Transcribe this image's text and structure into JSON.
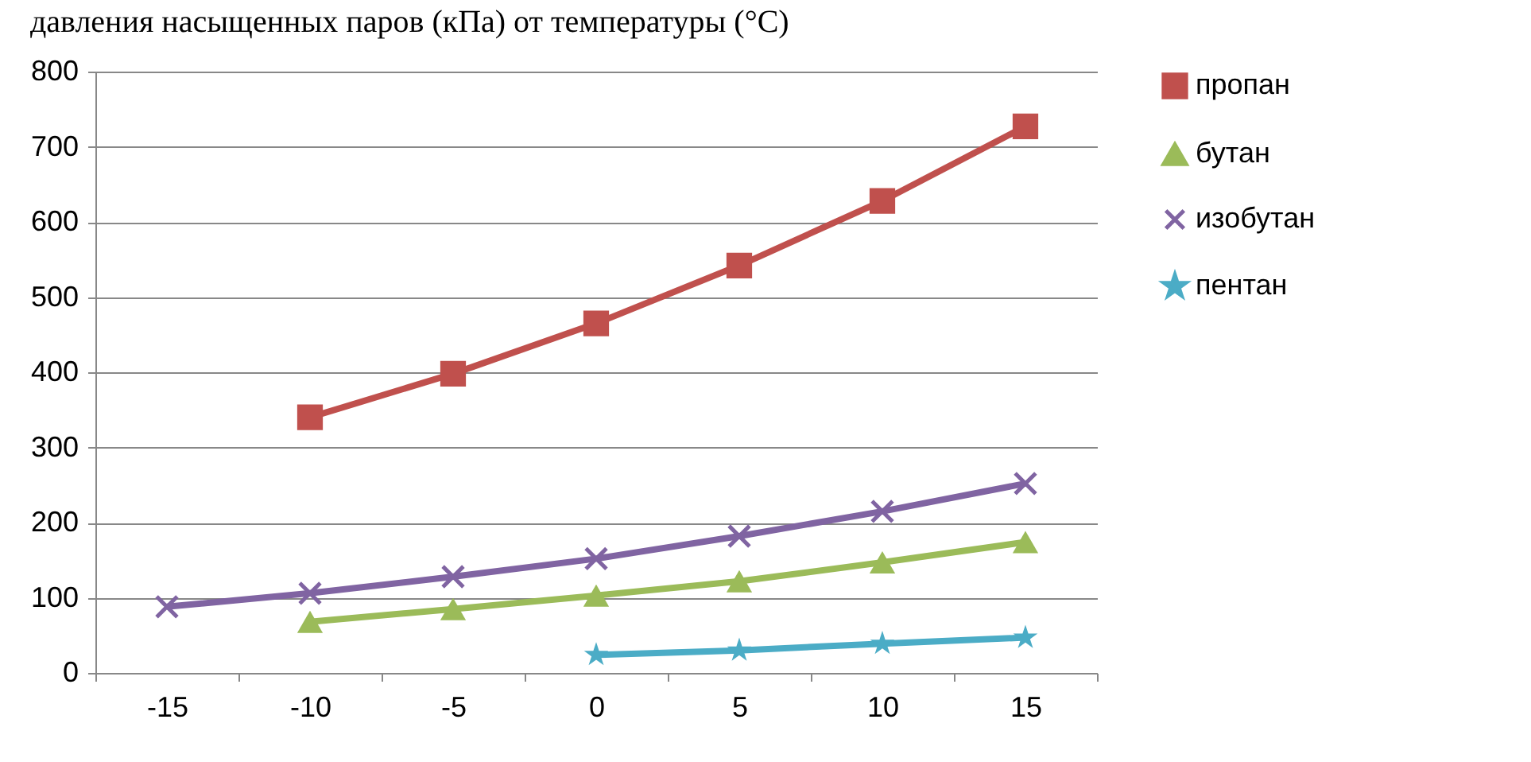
{
  "chart_data": {
    "type": "line",
    "title": "давления насыщенных паров (кПа) от температуры (°С)",
    "categories": [
      "-15",
      "-10",
      "-5",
      "0",
      "5",
      "10",
      "15"
    ],
    "series": [
      {
        "name": "пропан",
        "color": "#c0504d",
        "marker": "square",
        "values": [
          null,
          340,
          398,
          465,
          542,
          628,
          727
        ]
      },
      {
        "name": "бутан",
        "color": "#9bbb59",
        "marker": "triangle",
        "values": [
          null,
          68,
          85,
          103,
          122,
          147,
          174
        ]
      },
      {
        "name": "изобутан",
        "color": "#8064a2",
        "marker": "cross",
        "values": [
          88,
          106,
          128,
          152,
          182,
          215,
          252
        ]
      },
      {
        "name": "пентан",
        "color": "#4bacc6",
        "marker": "star",
        "values": [
          null,
          null,
          null,
          24,
          30,
          39,
          47
        ]
      }
    ],
    "ylim": [
      0,
      800
    ],
    "yticks": [
      0,
      100,
      200,
      300,
      400,
      500,
      600,
      700,
      800
    ],
    "grid": "y",
    "legend": "right"
  }
}
